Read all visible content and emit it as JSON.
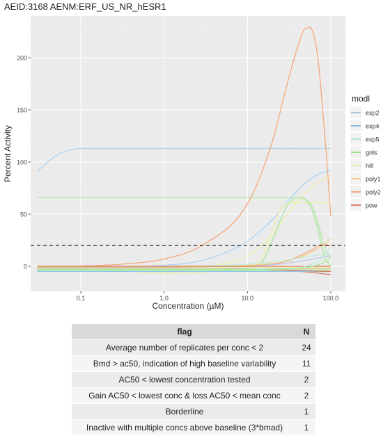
{
  "title": "AEID:3168  AENM:ERF_US_NR_hESR1",
  "chart_data": {
    "type": "line",
    "xlabel": "Concentration (µM)",
    "ylabel": "Percent Activity",
    "x_scale": "log10",
    "xlim": [
      0.025,
      150
    ],
    "ylim": [
      -24,
      240
    ],
    "x_ticks": [
      0.1,
      1,
      10,
      100
    ],
    "x_tick_labels": [
      "0.1",
      "1.0",
      "10.0",
      "100.0"
    ],
    "y_ticks": [
      0,
      50,
      100,
      150,
      200
    ],
    "y_tick_labels": [
      "0",
      "50",
      "100",
      "150",
      "200"
    ],
    "grid": true,
    "cutoff_line": 20,
    "legend_title": "modl",
    "legend_position": "right",
    "series": [
      {
        "name": "exp2",
        "color": "#9fb3d8"
      },
      {
        "name": "exp4",
        "color": "#6aaee0"
      },
      {
        "name": "exp5",
        "color": "#9ee2c9"
      },
      {
        "name": "gnls",
        "color": "#8fdc73"
      },
      {
        "name": "hill",
        "color": "#e6ec96"
      },
      {
        "name": "poly1",
        "color": "#f2c271"
      },
      {
        "name": "poly2",
        "color": "#f2975f"
      },
      {
        "name": "pow",
        "color": "#d9674a"
      }
    ],
    "curves": [
      {
        "name": "exp4-a",
        "color": "#a9d3f5",
        "x": [
          0.03,
          0.05,
          0.07,
          0.1,
          1,
          10,
          100
        ],
        "y": [
          91,
          106,
          111,
          113,
          113,
          113,
          113
        ]
      },
      {
        "name": "gnls-a",
        "color": "#a8e89a",
        "x": [
          0.03,
          1,
          10,
          30,
          40,
          50,
          60,
          70,
          80,
          90,
          100
        ],
        "y": [
          66,
          66,
          66,
          66,
          66,
          64,
          57,
          42,
          24,
          12,
          8
        ]
      },
      {
        "name": "poly2-a",
        "color": "#f5a77c",
        "x": [
          0.03,
          0.1,
          0.3,
          1,
          3,
          10,
          20,
          30,
          40,
          50,
          60,
          70,
          80,
          90,
          100
        ],
        "y": [
          0,
          0.3,
          2,
          7,
          21,
          60,
          120,
          175,
          210,
          228,
          226,
          200,
          150,
          100,
          48
        ]
      },
      {
        "name": "exp4-b",
        "color": "#a9d3f5",
        "x": [
          0.03,
          1,
          3,
          10,
          20,
          30,
          50,
          70,
          100
        ],
        "y": [
          0,
          1,
          6,
          24,
          45,
          62,
          80,
          88,
          92
        ]
      },
      {
        "name": "hill-a",
        "color": "#eef0a8",
        "x": [
          0.03,
          1,
          5,
          10,
          20,
          30,
          50,
          70,
          100
        ],
        "y": [
          0,
          0,
          2,
          10,
          30,
          50,
          70,
          80,
          87
        ]
      },
      {
        "name": "hill-b",
        "color": "#eef0a8",
        "x": [
          0.03,
          10,
          15,
          20,
          25,
          30,
          40,
          60,
          100
        ],
        "y": [
          0,
          1,
          8,
          35,
          55,
          60,
          61,
          61,
          61
        ]
      },
      {
        "name": "gnls-b",
        "color": "#a8e89a",
        "x": [
          0.03,
          10,
          15,
          20,
          30,
          40,
          55,
          65,
          75,
          85,
          100
        ],
        "y": [
          0,
          0,
          4,
          25,
          58,
          66,
          60,
          45,
          25,
          8,
          1
        ]
      },
      {
        "name": "poly1-a",
        "color": "#f3cf86",
        "x": [
          0.03,
          1,
          10,
          30,
          60,
          100
        ],
        "y": [
          -2,
          -1,
          1,
          5,
          14,
          26
        ]
      },
      {
        "name": "poly2-b",
        "color": "#f5a77c",
        "x": [
          0.03,
          1,
          10,
          30,
          60,
          80,
          100
        ],
        "y": [
          -1,
          -1,
          0,
          5,
          16,
          21,
          20
        ]
      },
      {
        "name": "exp5-a",
        "color": "#bfeedd",
        "x": [
          0.03,
          1,
          10,
          30,
          60,
          100
        ],
        "y": [
          -1,
          0,
          2,
          6,
          10,
          12
        ]
      },
      {
        "name": "exp2-a",
        "color": "#b9c7e4",
        "x": [
          0.03,
          1,
          10,
          30,
          60,
          100
        ],
        "y": [
          -1,
          -1,
          0,
          3,
          7,
          10
        ]
      },
      {
        "name": "pow-a",
        "color": "#de7a5d",
        "x": [
          0.03,
          1,
          10,
          30,
          60,
          100
        ],
        "y": [
          -1,
          -1,
          -2,
          -4,
          -6,
          -8
        ]
      },
      {
        "name": "exp5-b",
        "color": "#bfeedd",
        "x": [
          0.03,
          1,
          10,
          100
        ],
        "y": [
          -3,
          -3,
          -3,
          -3
        ]
      },
      {
        "name": "gnls-c",
        "color": "#a8e89a",
        "x": [
          0.03,
          1,
          10,
          100
        ],
        "y": [
          -4,
          -4,
          -4,
          -4
        ]
      },
      {
        "name": "exp4-c",
        "color": "#8dc4ec",
        "x": [
          0.03,
          1,
          10,
          100
        ],
        "y": [
          -5,
          -5,
          -5,
          -5
        ]
      },
      {
        "name": "exp2-b",
        "color": "#b9c7e4",
        "x": [
          0.03,
          1,
          10,
          100
        ],
        "y": [
          -2,
          -2,
          -2,
          -2
        ]
      },
      {
        "name": "hill-c",
        "color": "#eef0a8",
        "x": [
          0.03,
          1,
          10,
          100
        ],
        "y": [
          -1,
          -1,
          -1,
          -1
        ]
      },
      {
        "name": "pow-b",
        "color": "#de7a5d",
        "x": [
          0.03,
          1,
          10,
          100
        ],
        "y": [
          0,
          0,
          0,
          0
        ]
      },
      {
        "name": "poly1-b",
        "color": "#f3cf86",
        "x": [
          0.03,
          1,
          10,
          100
        ],
        "y": [
          -2.5,
          -2.5,
          -2.5,
          -2.5
        ]
      },
      {
        "name": "pow-c",
        "color": "#de7a5d",
        "x": [
          0.03,
          1,
          10,
          100
        ],
        "y": [
          -1.5,
          -1.5,
          -2.5,
          -5
        ]
      },
      {
        "name": "exp5-c",
        "color": "#bfeedd",
        "x": [
          0.03,
          10,
          50,
          80,
          100
        ],
        "y": [
          -2,
          -2,
          0,
          8,
          18
        ]
      },
      {
        "name": "gnls-d",
        "color": "#a8e89a",
        "x": [
          0.03,
          10,
          40,
          60,
          80,
          100
        ],
        "y": [
          -3,
          -3,
          -2,
          0,
          3,
          8
        ]
      }
    ]
  },
  "table": {
    "headers": [
      "flag",
      "N"
    ],
    "rows": [
      [
        "Average number of replicates per conc < 2",
        "24"
      ],
      [
        "Bmd > ac50, indication of high baseline variability",
        "11"
      ],
      [
        "AC50 < lowest concentration tested",
        "2"
      ],
      [
        "Gain AC50 < lowest conc & loss AC50 < mean conc",
        "2"
      ],
      [
        "Borderline",
        "1"
      ],
      [
        "Inactive with multiple concs above baseline (3*bmad)",
        "1"
      ]
    ]
  }
}
